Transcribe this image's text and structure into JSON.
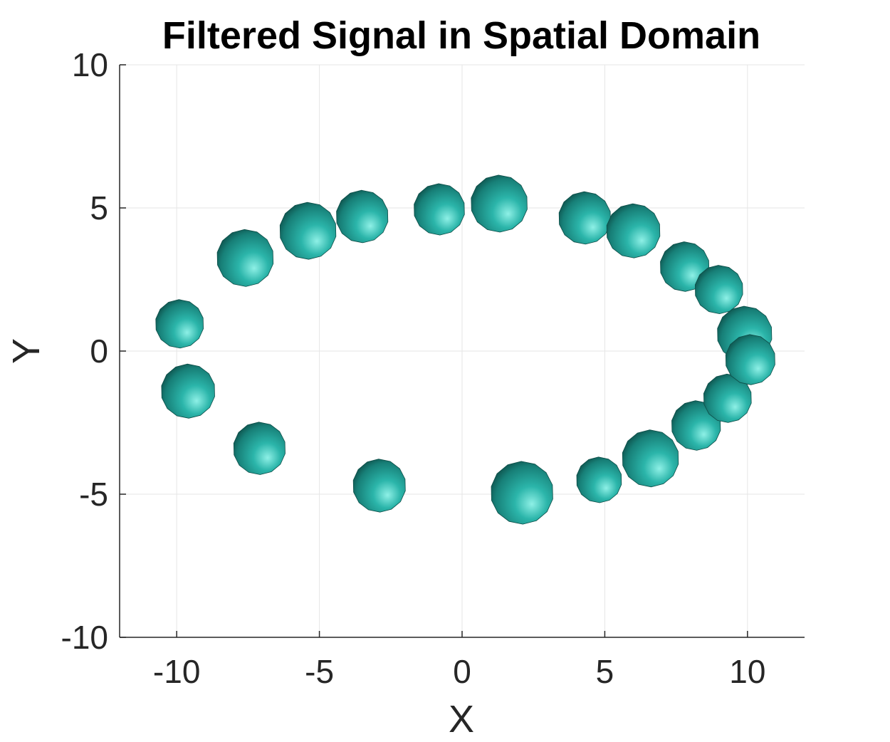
{
  "chart_data": {
    "type": "scatter",
    "title": "Filtered Signal in Spatial Domain",
    "xlabel": "X",
    "ylabel": "Y",
    "xlim": [
      -12,
      12
    ],
    "ylim": [
      -10,
      10
    ],
    "xticks": [
      -10,
      -5,
      0,
      5,
      10
    ],
    "yticks": [
      -10,
      -5,
      0,
      5,
      10
    ],
    "xtick_labels": [
      "-10",
      "-5",
      "0",
      "5",
      "10"
    ],
    "ytick_labels": [
      "-10",
      "-5",
      "0",
      "5",
      "10"
    ],
    "grid": true,
    "marker": "sphere",
    "colors": {
      "sphere_light": "#8ef0e6",
      "sphere_mid": "#1fa79c",
      "sphere_dark": "#0a3f3a",
      "grid": "#e6e6e6",
      "axis": "#262626"
    },
    "points": [
      {
        "x": -9.9,
        "y": 0.95,
        "r": 0.85
      },
      {
        "x": -9.6,
        "y": -1.4,
        "r": 0.95
      },
      {
        "x": -7.6,
        "y": 3.25,
        "r": 1.0
      },
      {
        "x": -7.1,
        "y": -3.4,
        "r": 0.92
      },
      {
        "x": -5.4,
        "y": 4.2,
        "r": 1.0
      },
      {
        "x": -3.5,
        "y": 4.7,
        "r": 0.92
      },
      {
        "x": -2.9,
        "y": -4.7,
        "r": 0.93
      },
      {
        "x": -0.8,
        "y": 4.95,
        "r": 0.9
      },
      {
        "x": 1.3,
        "y": 5.15,
        "r": 1.0
      },
      {
        "x": 2.1,
        "y": -4.95,
        "r": 1.1
      },
      {
        "x": 4.3,
        "y": 4.65,
        "r": 0.92
      },
      {
        "x": 4.8,
        "y": -4.5,
        "r": 0.8
      },
      {
        "x": 6.0,
        "y": 4.2,
        "r": 0.95
      },
      {
        "x": 6.6,
        "y": -3.75,
        "r": 1.0
      },
      {
        "x": 7.8,
        "y": 2.95,
        "r": 0.87
      },
      {
        "x": 8.2,
        "y": -2.6,
        "r": 0.87
      },
      {
        "x": 9.0,
        "y": 2.15,
        "r": 0.85
      },
      {
        "x": 9.3,
        "y": -1.65,
        "r": 0.85
      },
      {
        "x": 9.9,
        "y": 0.6,
        "r": 0.97
      },
      {
        "x": 10.1,
        "y": -0.3,
        "r": 0.88
      }
    ]
  }
}
